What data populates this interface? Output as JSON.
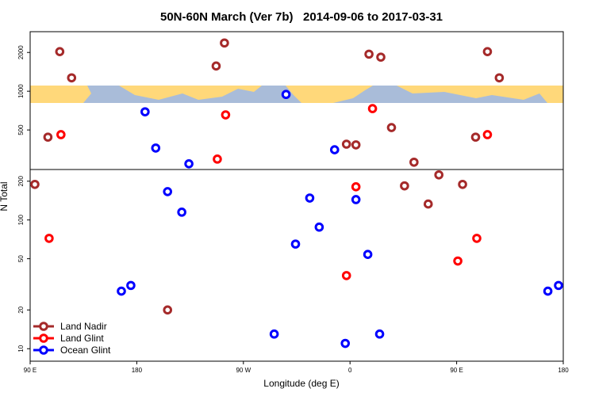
{
  "chart_data": {
    "type": "scatter",
    "title": "50N-60N March (Ver 7b)   2014-09-06 to 2017-03-31",
    "x_label": "Longitude (deg E)",
    "y_label": "N Total",
    "xlim": [
      90,
      540
    ],
    "xticks": [
      {
        "value": 90,
        "label": "90 E"
      },
      {
        "value": 180,
        "label": "180"
      },
      {
        "value": 270,
        "label": "90 W"
      },
      {
        "value": 360,
        "label": "0"
      },
      {
        "value": 450,
        "label": "90 E"
      },
      {
        "value": 540,
        "label": "180"
      }
    ],
    "ylim": [
      8,
      2900
    ],
    "y_log": true,
    "yticks": [
      10,
      20,
      50,
      100,
      200,
      500,
      1000,
      2000
    ],
    "legend": "lower left",
    "series": [
      {
        "name": "Land Nadir",
        "color": "#a52a2a",
        "x": [
          115,
          125,
          105,
          94,
          254,
          247,
          206,
          376,
          386,
          357,
          365,
          395,
          414,
          406,
          426,
          435,
          455,
          476,
          486,
          466
        ],
        "values": [
          2030,
          1270,
          440,
          189,
          2370,
          1570,
          20,
          1940,
          1840,
          388,
          383,
          522,
          281,
          184,
          133,
          224,
          189,
          2030,
          1270,
          440
        ]
      },
      {
        "name": "Land Glint",
        "color": "#ff0000",
        "x": [
          116,
          106,
          255,
          248,
          379,
          365,
          357,
          451,
          467,
          476
        ],
        "values": [
          460,
          72,
          655,
          297,
          733,
          181,
          37,
          48,
          72,
          460
        ]
      },
      {
        "name": "Ocean Glint",
        "color": "#0000ff",
        "x": [
          187,
          196,
          224,
          306,
          347,
          206,
          218,
          167,
          175,
          296,
          314,
          326,
          334,
          365,
          375,
          356,
          385,
          527,
          536
        ],
        "values": [
          692,
          362,
          273,
          944,
          351,
          166,
          115,
          28,
          31,
          13,
          65,
          148,
          88,
          144,
          54,
          11,
          13,
          28,
          31
        ]
      }
    ]
  }
}
